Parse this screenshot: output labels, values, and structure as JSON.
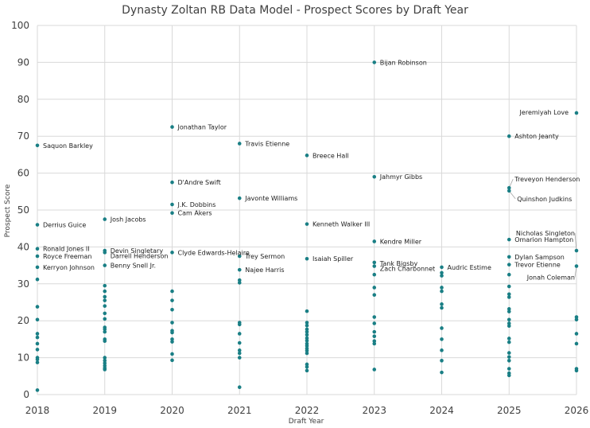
{
  "chart_data": {
    "type": "scatter",
    "title": "Dynasty Zoltan RB Data Model - Prospect Scores by Draft Year",
    "xlabel": "Draft Year",
    "ylabel": "Prospect Score",
    "xlim": [
      2018,
      2026
    ],
    "ylim": [
      0,
      100
    ],
    "x_ticks": [
      "2018",
      "2019",
      "2020",
      "2021",
      "2022",
      "2023",
      "2024",
      "2025",
      "2026"
    ],
    "y_ticks": [
      "0",
      "10",
      "20",
      "30",
      "40",
      "50",
      "60",
      "70",
      "80",
      "90",
      "100"
    ],
    "grid": true,
    "marker_color": "#1a7f85",
    "series": [
      {
        "points": [
          {
            "x": 2018,
            "y": 67.5,
            "label": "Saquon Barkley"
          },
          {
            "x": 2018,
            "y": 46,
            "label": "Derrius Guice"
          },
          {
            "x": 2018,
            "y": 39.5,
            "label": "Ronald Jones II"
          },
          {
            "x": 2018,
            "y": 37.5,
            "label": "Royce Freeman"
          },
          {
            "x": 2018,
            "y": 34.5,
            "label": "Kerryon Johnson"
          },
          {
            "x": 2018,
            "y": 31.2
          },
          {
            "x": 2018,
            "y": 23.8
          },
          {
            "x": 2018,
            "y": 20.3
          },
          {
            "x": 2018,
            "y": 16.5
          },
          {
            "x": 2018,
            "y": 15.5
          },
          {
            "x": 2018,
            "y": 13.8
          },
          {
            "x": 2018,
            "y": 12.2
          },
          {
            "x": 2018,
            "y": 10
          },
          {
            "x": 2018,
            "y": 9.5
          },
          {
            "x": 2018,
            "y": 8.7
          },
          {
            "x": 2018,
            "y": 1.2
          },
          {
            "x": 2019,
            "y": 47.5,
            "label": "Josh Jacobs"
          },
          {
            "x": 2019,
            "y": 39,
            "label": "Devin Singletary"
          },
          {
            "x": 2019,
            "y": 38.5,
            "label": "Darrell Henderson"
          },
          {
            "x": 2019,
            "y": 35,
            "label": "Benny Snell Jr."
          },
          {
            "x": 2019,
            "y": 29.5
          },
          {
            "x": 2019,
            "y": 28
          },
          {
            "x": 2019,
            "y": 26.5
          },
          {
            "x": 2019,
            "y": 25.5
          },
          {
            "x": 2019,
            "y": 24
          },
          {
            "x": 2019,
            "y": 22
          },
          {
            "x": 2019,
            "y": 20.5
          },
          {
            "x": 2019,
            "y": 18.2
          },
          {
            "x": 2019,
            "y": 17.7
          },
          {
            "x": 2019,
            "y": 17
          },
          {
            "x": 2019,
            "y": 15
          },
          {
            "x": 2019,
            "y": 14.5
          },
          {
            "x": 2019,
            "y": 10
          },
          {
            "x": 2019,
            "y": 9.2
          },
          {
            "x": 2019,
            "y": 8.5
          },
          {
            "x": 2019,
            "y": 7.8
          },
          {
            "x": 2019,
            "y": 7.2
          },
          {
            "x": 2019,
            "y": 6.8
          },
          {
            "x": 2020,
            "y": 72.5,
            "label": "Jonathan Taylor"
          },
          {
            "x": 2020,
            "y": 57.5,
            "label": "D'Andre Swift"
          },
          {
            "x": 2020,
            "y": 51.5,
            "label": "J.K. Dobbins"
          },
          {
            "x": 2020,
            "y": 49.2,
            "label": "Cam Akers"
          },
          {
            "x": 2020,
            "y": 38.5,
            "label": "Clyde Edwards-Helaire"
          },
          {
            "x": 2020,
            "y": 28
          },
          {
            "x": 2020,
            "y": 25.5
          },
          {
            "x": 2020,
            "y": 23
          },
          {
            "x": 2020,
            "y": 19.5
          },
          {
            "x": 2020,
            "y": 17.3
          },
          {
            "x": 2020,
            "y": 16.8
          },
          {
            "x": 2020,
            "y": 15
          },
          {
            "x": 2020,
            "y": 14.3
          },
          {
            "x": 2020,
            "y": 11
          },
          {
            "x": 2020,
            "y": 9.3
          },
          {
            "x": 2021,
            "y": 68,
            "label": "Travis Etienne"
          },
          {
            "x": 2021,
            "y": 53.2,
            "label": "Javonte Williams"
          },
          {
            "x": 2021,
            "y": 37.5,
            "label": "Trey Sermon"
          },
          {
            "x": 2021,
            "y": 33.8,
            "label": "Najee Harris"
          },
          {
            "x": 2021,
            "y": 31
          },
          {
            "x": 2021,
            "y": 30.3
          },
          {
            "x": 2021,
            "y": 19.5
          },
          {
            "x": 2021,
            "y": 19
          },
          {
            "x": 2021,
            "y": 16.5
          },
          {
            "x": 2021,
            "y": 14
          },
          {
            "x": 2021,
            "y": 12
          },
          {
            "x": 2021,
            "y": 11.2
          },
          {
            "x": 2021,
            "y": 10
          },
          {
            "x": 2021,
            "y": 2
          },
          {
            "x": 2022,
            "y": 64.8,
            "label": "Breece Hall"
          },
          {
            "x": 2022,
            "y": 46.2,
            "label": "Kenneth Walker III"
          },
          {
            "x": 2022,
            "y": 36.8,
            "label": "Isaiah Spiller"
          },
          {
            "x": 2022,
            "y": 22.6
          },
          {
            "x": 2022,
            "y": 19.5
          },
          {
            "x": 2022,
            "y": 18.7
          },
          {
            "x": 2022,
            "y": 17.7
          },
          {
            "x": 2022,
            "y": 17
          },
          {
            "x": 2022,
            "y": 16.2
          },
          {
            "x": 2022,
            "y": 15.3
          },
          {
            "x": 2022,
            "y": 14.6
          },
          {
            "x": 2022,
            "y": 13.8
          },
          {
            "x": 2022,
            "y": 13.2
          },
          {
            "x": 2022,
            "y": 12.5
          },
          {
            "x": 2022,
            "y": 11.9
          },
          {
            "x": 2022,
            "y": 11.2
          },
          {
            "x": 2022,
            "y": 8.2
          },
          {
            "x": 2022,
            "y": 7.5
          },
          {
            "x": 2022,
            "y": 6.5
          },
          {
            "x": 2023,
            "y": 90,
            "label": "Bijan Robinson"
          },
          {
            "x": 2023,
            "y": 59,
            "label": "Jahmyr Gibbs"
          },
          {
            "x": 2023,
            "y": 41.5,
            "label": "Kendre Miller"
          },
          {
            "x": 2023,
            "y": 35.8,
            "label": "Tank Bigsby"
          },
          {
            "x": 2023,
            "y": 34.8,
            "label": "Zach Charbonnet"
          },
          {
            "x": 2023,
            "y": 32.5
          },
          {
            "x": 2023,
            "y": 29
          },
          {
            "x": 2023,
            "y": 27
          },
          {
            "x": 2023,
            "y": 21
          },
          {
            "x": 2023,
            "y": 19.3
          },
          {
            "x": 2023,
            "y": 17
          },
          {
            "x": 2023,
            "y": 15.8
          },
          {
            "x": 2023,
            "y": 14.5
          },
          {
            "x": 2023,
            "y": 13.8
          },
          {
            "x": 2023,
            "y": 6.8
          },
          {
            "x": 2024,
            "y": 34.5,
            "label": "Audric Estime"
          },
          {
            "x": 2024,
            "y": 33
          },
          {
            "x": 2024,
            "y": 32.2
          },
          {
            "x": 2024,
            "y": 29
          },
          {
            "x": 2024,
            "y": 28
          },
          {
            "x": 2024,
            "y": 24.5
          },
          {
            "x": 2024,
            "y": 23.5
          },
          {
            "x": 2024,
            "y": 18
          },
          {
            "x": 2024,
            "y": 15
          },
          {
            "x": 2024,
            "y": 12
          },
          {
            "x": 2024,
            "y": 9.2
          },
          {
            "x": 2024,
            "y": 6
          },
          {
            "x": 2025,
            "y": 70,
            "label": "Ashton Jeanty"
          },
          {
            "x": 2025,
            "y": 56,
            "label": "Treveyon Henderson"
          },
          {
            "x": 2025,
            "y": 55.2,
            "label": "Quinshon Judkins"
          },
          {
            "x": 2025,
            "y": 42,
            "label": "Omarion Hampton"
          },
          {
            "x": 2025,
            "y": 37.3,
            "label": "Dylan Sampson"
          },
          {
            "x": 2025,
            "y": 35.2,
            "label": "Trevor Etienne"
          },
          {
            "x": 2025,
            "y": 32.5
          },
          {
            "x": 2025,
            "y": 29.3
          },
          {
            "x": 2025,
            "y": 27.2
          },
          {
            "x": 2025,
            "y": 26.4
          },
          {
            "x": 2025,
            "y": 23.2
          },
          {
            "x": 2025,
            "y": 22.5
          },
          {
            "x": 2025,
            "y": 20.3
          },
          {
            "x": 2025,
            "y": 19.3
          },
          {
            "x": 2025,
            "y": 18.6
          },
          {
            "x": 2025,
            "y": 15.2
          },
          {
            "x": 2025,
            "y": 14.2
          },
          {
            "x": 2025,
            "y": 11.3
          },
          {
            "x": 2025,
            "y": 10.2
          },
          {
            "x": 2025,
            "y": 9.2
          },
          {
            "x": 2025,
            "y": 7
          },
          {
            "x": 2025,
            "y": 5.8
          },
          {
            "x": 2025,
            "y": 5.2
          },
          {
            "x": 2026,
            "y": 76.3,
            "label": "Jeremiyah Love"
          },
          {
            "x": 2026,
            "y": 39,
            "label": "Nicholas Singleton"
          },
          {
            "x": 2026,
            "y": 34.8,
            "label": "Jonah Coleman"
          },
          {
            "x": 2026,
            "y": 21
          },
          {
            "x": 2026,
            "y": 20.3
          },
          {
            "x": 2026,
            "y": 16.5
          },
          {
            "x": 2026,
            "y": 13.8
          },
          {
            "x": 2026,
            "y": 7
          },
          {
            "x": 2026,
            "y": 6.5
          }
        ]
      }
    ]
  }
}
